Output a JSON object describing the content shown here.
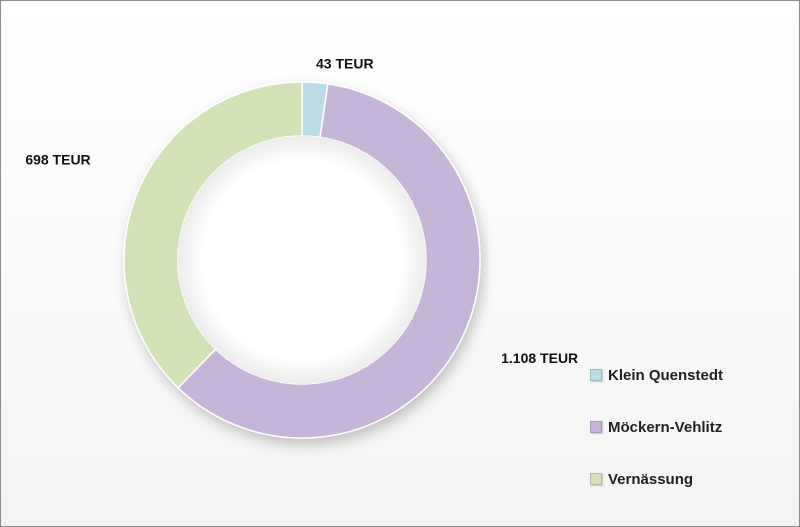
{
  "chart_data": {
    "type": "pie",
    "variant": "donut",
    "title": "",
    "legend_position": "right-bottom",
    "slices": [
      {
        "name": "Klein Quenstedt",
        "value": 43,
        "label": "43 TEUR",
        "color": "#b9dde7"
      },
      {
        "name": "Möckern-Vehlitz",
        "value": 1108,
        "label": "1.108 TEUR",
        "color": "#c4b5d9"
      },
      {
        "name": "Vernässung",
        "value": 698,
        "label": "698 TEUR",
        "color": "#d3e2b5"
      }
    ]
  }
}
